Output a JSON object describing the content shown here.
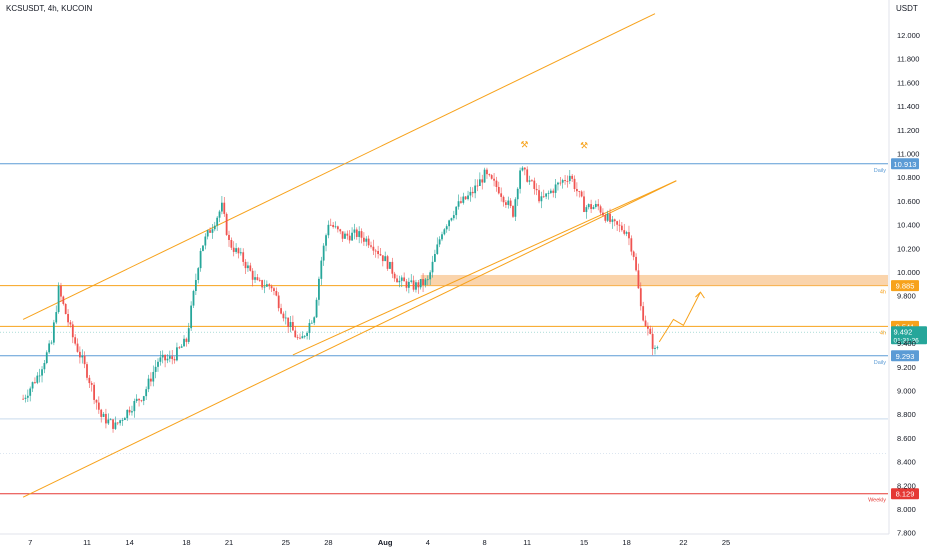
{
  "symbol_header": "KCSUSDT, 4h, KUCOIN",
  "currency": "USDT",
  "colors": {
    "up": "#26a69a",
    "down": "#ef5350",
    "channel": "#f7a21b",
    "blue_line": "#5b9bd5",
    "red_line": "#e53935",
    "zone": "#f8c690"
  },
  "chart_data": {
    "type": "candlestick",
    "y_axis": {
      "ticks": [
        "12.000",
        "11.800",
        "11.600",
        "11.400",
        "11.200",
        "11.000",
        "10.800",
        "10.600",
        "10.400",
        "10.200",
        "10.000",
        "9.800",
        "9.600",
        "9.400",
        "9.200",
        "9.000",
        "8.800",
        "8.600",
        "8.400",
        "8.200",
        "8.000",
        "7.800"
      ]
    },
    "x_axis": {
      "ticks": [
        {
          "label": "7",
          "day": 7
        },
        {
          "label": "11",
          "day": 11
        },
        {
          "label": "14",
          "day": 14
        },
        {
          "label": "18",
          "day": 18
        },
        {
          "label": "21",
          "day": 21
        },
        {
          "label": "25",
          "day": 25
        },
        {
          "label": "28",
          "day": 28
        },
        {
          "label": "Aug",
          "day": 32
        },
        {
          "label": "4",
          "day": 35
        },
        {
          "label": "8",
          "day": 39
        },
        {
          "label": "11",
          "day": 42
        },
        {
          "label": "15",
          "day": 46
        },
        {
          "label": "18",
          "day": 49
        },
        {
          "label": "22",
          "day": 53
        },
        {
          "label": "25",
          "day": 56
        }
      ]
    },
    "price_path": [
      [
        6.5,
        8.93
      ],
      [
        7.5,
        9.12
      ],
      [
        8.5,
        9.4
      ],
      [
        9.0,
        9.85
      ],
      [
        10.0,
        9.45
      ],
      [
        11.0,
        9.15
      ],
      [
        12.0,
        8.78
      ],
      [
        13.0,
        8.7
      ],
      [
        14.0,
        8.85
      ],
      [
        15.0,
        8.97
      ],
      [
        16.0,
        9.25
      ],
      [
        17.0,
        9.27
      ],
      [
        18.0,
        9.42
      ],
      [
        19.0,
        10.2
      ],
      [
        20.5,
        10.55
      ],
      [
        21.0,
        10.25
      ],
      [
        22.0,
        10.1
      ],
      [
        23.0,
        9.9
      ],
      [
        24.0,
        9.88
      ],
      [
        25.0,
        9.6
      ],
      [
        26.0,
        9.4
      ],
      [
        27.0,
        9.65
      ],
      [
        27.5,
        10.1
      ],
      [
        28.0,
        10.42
      ],
      [
        29.0,
        10.3
      ],
      [
        30.0,
        10.32
      ],
      [
        31.0,
        10.25
      ],
      [
        32.0,
        10.1
      ],
      [
        33.0,
        9.92
      ],
      [
        34.0,
        9.88
      ],
      [
        35.0,
        9.92
      ],
      [
        36.0,
        10.35
      ],
      [
        37.0,
        10.55
      ],
      [
        38.0,
        10.65
      ],
      [
        39.0,
        10.82
      ],
      [
        40.0,
        10.7
      ],
      [
        41.0,
        10.5
      ],
      [
        41.5,
        10.87
      ],
      [
        42.0,
        10.8
      ],
      [
        43.0,
        10.6
      ],
      [
        44.0,
        10.72
      ],
      [
        45.0,
        10.82
      ],
      [
        46.0,
        10.55
      ],
      [
        47.0,
        10.55
      ],
      [
        48.0,
        10.4
      ],
      [
        49.0,
        10.35
      ],
      [
        49.5,
        10.15
      ],
      [
        50.0,
        9.7
      ],
      [
        50.5,
        9.5
      ],
      [
        51.0,
        9.33
      ],
      [
        51.3,
        9.4
      ]
    ],
    "horizontal_levels": [
      {
        "price": 10.913,
        "label": "10.913",
        "tag": "Daily",
        "color": "#5b9bd5"
      },
      {
        "price": 9.885,
        "label": "9.885",
        "tag": "4h",
        "color": "#f7a21b"
      },
      {
        "price": 9.541,
        "label": "9.541",
        "tag": "4h",
        "color": "#f7a21b"
      },
      {
        "price": 9.293,
        "label": "9.293",
        "tag": "Daily",
        "color": "#5b9bd5"
      },
      {
        "price": 8.129,
        "label": "8.129",
        "tag": "Weekly",
        "color": "#e53935"
      }
    ],
    "current_price": {
      "price": 9.492,
      "label": "9.492",
      "countdown": "01:31:26"
    },
    "resistance_zone": {
      "from_day": 34.5,
      "to_day": 58.0,
      "low": 9.885,
      "high": 9.975
    },
    "channel": {
      "upper": [
        [
          6.5,
          9.6
        ],
        [
          51.0,
          12.18
        ]
      ],
      "lower": [
        [
          6.5,
          8.1
        ],
        [
          52.5,
          10.77
        ]
      ],
      "mid": [
        [
          25.5,
          9.3
        ],
        [
          52.5,
          10.77
        ]
      ]
    },
    "projection_path": [
      [
        51.3,
        9.41
      ],
      [
        52.3,
        9.6
      ],
      [
        53.0,
        9.55
      ],
      [
        54.2,
        9.83
      ]
    ],
    "markers": [
      [
        41.8,
        11.0
      ],
      [
        46.0,
        10.99
      ]
    ],
    "grid": false
  }
}
